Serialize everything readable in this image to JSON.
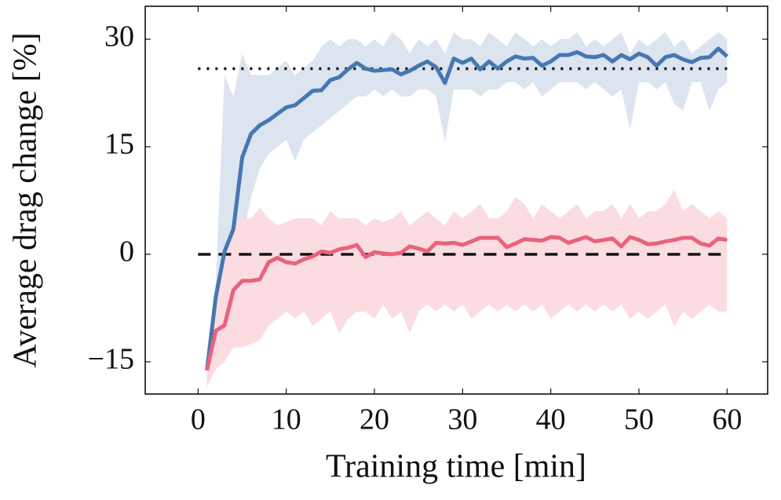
{
  "chart_data": {
    "type": "line",
    "x_label": "Training time [min]",
    "y_label": "Average drag change [%]",
    "xlim": [
      -6,
      64.6
    ],
    "ylim": [
      -19.5,
      34.6
    ],
    "xticks": [
      0,
      10,
      20,
      30,
      40,
      50,
      60
    ],
    "yticks": [
      {
        "value": -15,
        "label": "−15"
      },
      0,
      15,
      30
    ],
    "x": [
      1,
      2,
      3,
      4,
      5,
      6,
      7,
      8,
      9,
      10,
      11,
      12,
      13,
      14,
      15,
      16,
      17,
      18,
      19,
      20,
      21,
      22,
      23,
      24,
      25,
      26,
      27,
      28,
      29,
      30,
      31,
      32,
      33,
      34,
      35,
      36,
      37,
      38,
      39,
      40,
      41,
      42,
      43,
      44,
      45,
      46,
      47,
      48,
      49,
      50,
      51,
      52,
      53,
      54,
      55,
      56,
      57,
      58,
      59,
      60
    ],
    "series": [
      {
        "color": "#4677b0",
        "band_color": "#dce4f0",
        "values": [
          -16.2,
          -6,
          0.4,
          3.5,
          13.5,
          16.8,
          18,
          18.7,
          19.6,
          20.5,
          20.8,
          21.8,
          22.8,
          22.9,
          24.3,
          24.7,
          25.8,
          26.7,
          25.9,
          25.6,
          25.7,
          25.8,
          25.1,
          25.6,
          26.3,
          26.9,
          26.1,
          23.9,
          27.3,
          26.7,
          27.3,
          25.8,
          26.9,
          25.9,
          26.9,
          27.6,
          27.3,
          27.4,
          26.3,
          26.9,
          27.8,
          27.8,
          28.2,
          27.6,
          27.5,
          27.8,
          26.9,
          27.8,
          27.2,
          28,
          27.5,
          26.3,
          27.5,
          27.8,
          27.2,
          26.8,
          27.4,
          27.5,
          28.7,
          27.6
        ],
        "upper": [
          -14,
          -4,
          25,
          22,
          28,
          25,
          25,
          25,
          26,
          27,
          25,
          26,
          27,
          29,
          30,
          29,
          30,
          30,
          29,
          30,
          29,
          31,
          30,
          28,
          30,
          29,
          30,
          28,
          31,
          30,
          30,
          29,
          31,
          30,
          29,
          31,
          30,
          29,
          30,
          29,
          30,
          30,
          31,
          29,
          30,
          29,
          30,
          31,
          28,
          30,
          29,
          30,
          31,
          29,
          30,
          28,
          29,
          30,
          31,
          30
        ],
        "lower": [
          -18,
          -15,
          -11,
          -8,
          2,
          8,
          12,
          14,
          15,
          16,
          13,
          16,
          17,
          18,
          19,
          20,
          21,
          22,
          22,
          23,
          22,
          23,
          22,
          22,
          23,
          23,
          22,
          15.7,
          23,
          23,
          23,
          22,
          23,
          23,
          24,
          24,
          23,
          24,
          22,
          23,
          24,
          24,
          24,
          23,
          24,
          23,
          22,
          23,
          17.5,
          24,
          24,
          23,
          24,
          21,
          20,
          24,
          24,
          20,
          23,
          24
        ]
      },
      {
        "color": "#e8637b",
        "band_color": "#fadce1",
        "values": [
          -16.2,
          -10.7,
          -9.9,
          -5,
          -3.7,
          -3.7,
          -3.5,
          -1.1,
          -0.5,
          -1.1,
          -1.3,
          -0.7,
          -0.3,
          0.4,
          0.2,
          0.7,
          0.9,
          1.3,
          -0.4,
          0.3,
          0.1,
          0,
          0.2,
          1.1,
          0.8,
          0.4,
          1.6,
          1.5,
          1.6,
          1.3,
          1.8,
          2.3,
          2.3,
          2.3,
          1,
          1.5,
          2.1,
          2,
          1.9,
          2.4,
          2.3,
          1.6,
          2,
          2.4,
          1.8,
          2,
          2.2,
          1.1,
          2.4,
          2,
          1.4,
          1.5,
          1.8,
          2,
          2.3,
          2.3,
          1.5,
          1.2,
          2.2,
          2
        ],
        "upper": [
          -14,
          -5,
          0,
          4,
          5,
          5,
          6.5,
          5,
          4,
          4.5,
          5,
          5,
          5,
          4,
          6,
          5,
          5,
          5,
          4,
          5,
          4.5,
          5,
          6,
          4,
          5,
          6,
          5,
          4,
          6,
          5,
          6,
          7,
          5,
          5,
          6,
          8,
          7,
          5,
          7,
          6,
          5,
          6,
          7,
          5,
          6,
          6,
          7,
          5,
          7,
          5,
          6,
          6,
          7,
          9,
          6,
          7,
          6,
          5,
          6,
          5
        ],
        "lower": [
          -18.5,
          -16,
          -15,
          -13,
          -13,
          -12.5,
          -12,
          -10,
          -9,
          -8,
          -9,
          -8,
          -10,
          -9,
          -8,
          -11,
          -9,
          -8,
          -8,
          -9,
          -7,
          -9,
          -8,
          -11,
          -8,
          -7,
          -8,
          -7,
          -8,
          -7,
          -9,
          -8,
          -7,
          -8,
          -7,
          -8,
          -7,
          -8,
          -7,
          -9,
          -8,
          -7,
          -8,
          -7,
          -8,
          -7,
          -8,
          -7,
          -9,
          -8,
          -9,
          -8,
          -7,
          -10,
          -8,
          -9,
          -8,
          -7,
          -8,
          -8
        ]
      }
    ],
    "hlines": [
      {
        "y": 25.9,
        "xspan": [
          0,
          60
        ],
        "style": "dotted",
        "color": "#111111"
      },
      {
        "y": 0,
        "xspan": [
          0,
          60
        ],
        "style": "dashed",
        "color": "#111111"
      }
    ]
  }
}
